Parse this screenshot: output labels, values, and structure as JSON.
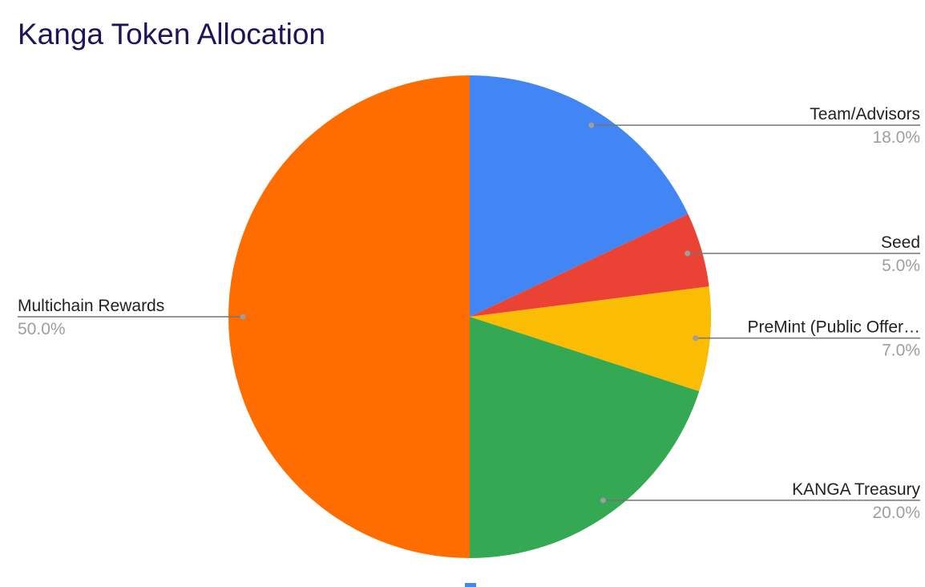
{
  "chart_data": {
    "type": "pie",
    "title": "Kanga Token Allocation",
    "slices": [
      {
        "name": "Team/Advisors",
        "label": "Team/Advisors",
        "value": 18.0,
        "percent_label": "18.0%",
        "color": "#4285f4"
      },
      {
        "name": "Seed",
        "label": "Seed",
        "value": 5.0,
        "percent_label": "5.0%",
        "color": "#ea4335"
      },
      {
        "name": "PreMint (Public Offering)",
        "label": "PreMint (Public Offer…",
        "value": 7.0,
        "percent_label": "7.0%",
        "color": "#fbbc04"
      },
      {
        "name": "KANGA Treasury",
        "label": "KANGA Treasury",
        "value": 20.0,
        "percent_label": "20.0%",
        "color": "#34a853"
      },
      {
        "name": "Multichain Rewards",
        "label": "Multichain Rewards",
        "value": 50.0,
        "percent_label": "50.0%",
        "color": "#ff6d01"
      }
    ],
    "start_angle": "12 o'clock",
    "direction": "clockwise",
    "legend": "none"
  }
}
